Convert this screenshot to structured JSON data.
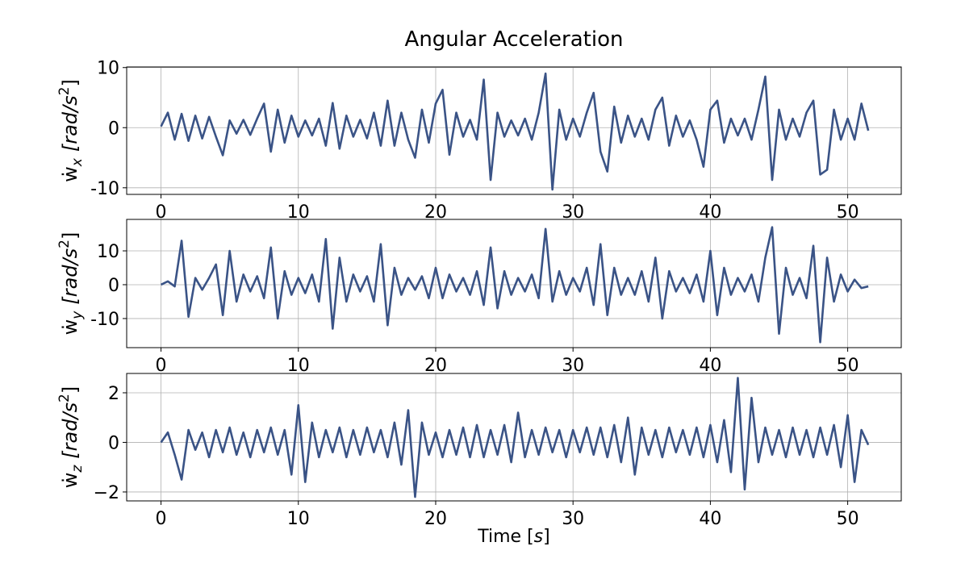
{
  "chart_data": [
    {
      "type": "line",
      "title": "Angular Acceleration",
      "ylabel": [
        "ẇ",
        "x",
        "[rad/s",
        "2",
        "]"
      ],
      "color": "#3a5386",
      "grid": true,
      "xlim": [
        -2.5,
        53.9
      ],
      "xticks": [
        0,
        10,
        20,
        30,
        40,
        50
      ],
      "ylim": [
        -11.1,
        10.1
      ],
      "yticks": [
        -10,
        0,
        10
      ],
      "x": [
        0,
        0.5,
        1,
        1.5,
        2,
        2.5,
        3,
        3.5,
        4,
        4.5,
        5,
        5.5,
        6,
        6.5,
        7,
        7.5,
        8,
        8.5,
        9,
        9.5,
        10,
        10.5,
        11,
        11.5,
        12,
        12.5,
        13,
        13.5,
        14,
        14.5,
        15,
        15.5,
        16,
        16.5,
        17,
        17.5,
        18,
        18.5,
        19,
        19.5,
        20,
        20.5,
        21,
        21.5,
        22,
        22.5,
        23,
        23.5,
        24,
        24.5,
        25,
        25.5,
        26,
        26.5,
        27,
        27.5,
        28,
        28.5,
        29,
        29.5,
        30,
        30.5,
        31,
        31.5,
        32,
        32.5,
        33,
        33.5,
        34,
        34.5,
        35,
        35.5,
        36,
        36.5,
        37,
        37.5,
        38,
        38.5,
        39,
        39.5,
        40,
        40.5,
        41,
        41.5,
        42,
        42.5,
        43,
        43.5,
        44,
        44.5,
        45,
        45.5,
        46,
        46.5,
        47,
        47.5,
        48,
        48.5,
        49,
        49.5,
        50,
        50.5,
        51,
        51.5
      ],
      "values": [
        0.2,
        2.5,
        -2.0,
        2.3,
        -2.2,
        2.0,
        -1.8,
        1.8,
        -1.5,
        -4.6,
        1.2,
        -1.0,
        1.3,
        -1.2,
        1.5,
        4.0,
        -4.0,
        3.0,
        -2.5,
        2.0,
        -1.5,
        1.2,
        -1.3,
        1.5,
        -3.0,
        4.1,
        -3.5,
        2.0,
        -1.5,
        1.3,
        -1.8,
        2.5,
        -3.0,
        4.5,
        -3.0,
        2.5,
        -2.0,
        -5.0,
        3.0,
        -2.5,
        4.0,
        6.3,
        -4.5,
        2.5,
        -1.5,
        1.3,
        -2.0,
        8.0,
        -8.7,
        2.5,
        -1.5,
        1.2,
        -1.3,
        1.5,
        -2.0,
        2.5,
        9.0,
        -10.3,
        3.0,
        -2.0,
        1.5,
        -1.5,
        2.5,
        5.8,
        -4.0,
        -7.3,
        3.5,
        -2.5,
        2.0,
        -1.5,
        1.5,
        -2.0,
        3.0,
        5.0,
        -3.0,
        2.0,
        -1.5,
        1.2,
        -2.0,
        -6.5,
        3.0,
        4.5,
        -2.5,
        1.5,
        -1.3,
        1.5,
        -2.0,
        3.0,
        8.5,
        -8.7,
        3.0,
        -2.0,
        1.5,
        -1.5,
        2.5,
        4.5,
        -7.8,
        -7.0,
        3.0,
        -2.0,
        1.5,
        -2.0,
        4.0,
        -0.5
      ]
    },
    {
      "type": "line",
      "ylabel": [
        "ẇ",
        "y",
        "[rad/s",
        "2",
        "]"
      ],
      "color": "#3a5386",
      "grid": true,
      "xlim": [
        -2.5,
        53.9
      ],
      "xticks": [
        0,
        10,
        20,
        30,
        40,
        50
      ],
      "ylim": [
        -18.6,
        19.3
      ],
      "yticks": [
        -10,
        0,
        10
      ],
      "x": [
        0,
        0.5,
        1,
        1.5,
        2,
        2.5,
        3,
        3.5,
        4,
        4.5,
        5,
        5.5,
        6,
        6.5,
        7,
        7.5,
        8,
        8.5,
        9,
        9.5,
        10,
        10.5,
        11,
        11.5,
        12,
        12.5,
        13,
        13.5,
        14,
        14.5,
        15,
        15.5,
        16,
        16.5,
        17,
        17.5,
        18,
        18.5,
        19,
        19.5,
        20,
        20.5,
        21,
        21.5,
        22,
        22.5,
        23,
        23.5,
        24,
        24.5,
        25,
        25.5,
        26,
        26.5,
        27,
        27.5,
        28,
        28.5,
        29,
        29.5,
        30,
        30.5,
        31,
        31.5,
        32,
        32.5,
        33,
        33.5,
        34,
        34.5,
        35,
        35.5,
        36,
        36.5,
        37,
        37.5,
        38,
        38.5,
        39,
        39.5,
        40,
        40.5,
        41,
        41.5,
        42,
        42.5,
        43,
        43.5,
        44,
        44.5,
        45,
        45.5,
        46,
        46.5,
        47,
        47.5,
        48,
        48.5,
        49,
        49.5,
        50,
        50.5,
        51,
        51.5
      ],
      "values": [
        0,
        1,
        -0.5,
        13,
        -9.5,
        2,
        -1.5,
        2,
        6,
        -9,
        10,
        -5,
        3,
        -2,
        2.5,
        -4,
        11,
        -10,
        4,
        -3,
        2,
        -2.5,
        3,
        -5,
        13.5,
        -13,
        8,
        -5,
        3,
        -2,
        2.5,
        -5,
        12,
        -12,
        5,
        -3,
        2,
        -1.5,
        2.5,
        -4,
        5,
        -4,
        3,
        -2,
        2,
        -3,
        4,
        -6,
        11,
        -7,
        4,
        -3,
        2,
        -2,
        3,
        -4,
        16.5,
        -5,
        4,
        -3,
        2,
        -2,
        5,
        -6,
        12,
        -9,
        5,
        -3,
        2,
        -3,
        4,
        -5,
        8,
        -10,
        4,
        -2,
        2,
        -2.5,
        3,
        -5,
        10,
        -9,
        5,
        -3,
        2,
        -2,
        3,
        -5,
        8,
        17,
        -14.5,
        5,
        -3,
        2,
        -4,
        11.5,
        -17,
        8,
        -5,
        3,
        -2,
        1.5,
        -1,
        -0.5
      ]
    },
    {
      "type": "line",
      "ylabel": [
        "ẇ",
        "z",
        "[rad/s",
        "2",
        "]"
      ],
      "xlabel": [
        "Time [",
        "s",
        "]"
      ],
      "color": "#3a5386",
      "grid": true,
      "xlim": [
        -2.5,
        53.9
      ],
      "xticks": [
        0,
        10,
        20,
        30,
        40,
        50
      ],
      "ylim": [
        -2.36,
        2.78
      ],
      "yticks": [
        {
          "value": -2,
          "label": "−2"
        },
        0,
        2
      ],
      "x": [
        0,
        0.5,
        1,
        1.5,
        2,
        2.5,
        3,
        3.5,
        4,
        4.5,
        5,
        5.5,
        6,
        6.5,
        7,
        7.5,
        8,
        8.5,
        9,
        9.5,
        10,
        10.5,
        11,
        11.5,
        12,
        12.5,
        13,
        13.5,
        14,
        14.5,
        15,
        15.5,
        16,
        16.5,
        17,
        17.5,
        18,
        18.5,
        19,
        19.5,
        20,
        20.5,
        21,
        21.5,
        22,
        22.5,
        23,
        23.5,
        24,
        24.5,
        25,
        25.5,
        26,
        26.5,
        27,
        27.5,
        28,
        28.5,
        29,
        29.5,
        30,
        30.5,
        31,
        31.5,
        32,
        32.5,
        33,
        33.5,
        34,
        34.5,
        35,
        35.5,
        36,
        36.5,
        37,
        37.5,
        38,
        38.5,
        39,
        39.5,
        40,
        40.5,
        41,
        41.5,
        42,
        42.5,
        43,
        43.5,
        44,
        44.5,
        45,
        45.5,
        46,
        46.5,
        47,
        47.5,
        48,
        48.5,
        49,
        49.5,
        50,
        50.5,
        51,
        51.5
      ],
      "values": [
        0,
        0.4,
        -0.5,
        -1.5,
        0.5,
        -0.3,
        0.4,
        -0.6,
        0.5,
        -0.4,
        0.6,
        -0.5,
        0.4,
        -0.6,
        0.5,
        -0.4,
        0.6,
        -0.5,
        0.5,
        -1.3,
        1.5,
        -1.6,
        0.8,
        -0.6,
        0.5,
        -0.4,
        0.6,
        -0.6,
        0.5,
        -0.5,
        0.6,
        -0.4,
        0.5,
        -0.6,
        0.8,
        -0.9,
        1.3,
        -2.2,
        0.8,
        -0.5,
        0.4,
        -0.6,
        0.5,
        -0.5,
        0.6,
        -0.6,
        0.7,
        -0.6,
        0.5,
        -0.5,
        0.7,
        -0.8,
        1.2,
        -0.6,
        0.5,
        -0.5,
        0.6,
        -0.4,
        0.5,
        -0.6,
        0.5,
        -0.4,
        0.6,
        -0.5,
        0.6,
        -0.6,
        0.7,
        -0.8,
        1.0,
        -1.3,
        0.6,
        -0.5,
        0.5,
        -0.6,
        0.6,
        -0.4,
        0.5,
        -0.5,
        0.6,
        -0.6,
        0.7,
        -0.8,
        0.9,
        -1.2,
        2.6,
        -1.9,
        1.8,
        -0.8,
        0.6,
        -0.5,
        0.5,
        -0.6,
        0.6,
        -0.5,
        0.5,
        -0.6,
        0.6,
        -0.5,
        0.7,
        -1.0,
        1.1,
        -1.6,
        0.5,
        -0.1
      ]
    }
  ]
}
